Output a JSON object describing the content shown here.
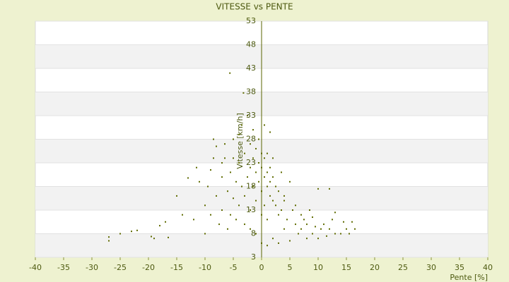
{
  "chart_data": {
    "type": "scatter",
    "title": "VITESSE vs PENTE",
    "x_label": "Pente [%]",
    "y_label": "Vitesse [km/h]",
    "xlim": [
      -40,
      40
    ],
    "xticks": [
      -40,
      -35,
      -30,
      -25,
      -20,
      -15,
      -10,
      -5,
      0,
      5,
      10,
      15,
      20,
      25,
      30,
      35,
      40
    ],
    "ylim": [
      3,
      53
    ],
    "yticks": [
      3,
      8,
      13,
      18,
      23,
      28,
      33,
      38,
      43,
      48,
      53
    ],
    "grid": true,
    "series": [
      {
        "color": "#5f6b00",
        "x": [
          -27,
          -27,
          -25,
          -23,
          -22,
          -19.5,
          -19,
          -18,
          -17,
          -16.5,
          -15,
          -14,
          -13,
          -12,
          -11.5,
          -11,
          -10,
          -10,
          -9.5,
          -9,
          -9,
          -8.5,
          -8,
          -8,
          -7.5,
          -7,
          -7,
          -6.5,
          -6.5,
          -6,
          -6,
          -5.5,
          -5.5,
          -5,
          -5,
          -5,
          -4.5,
          -4.5,
          -4,
          -4,
          -4,
          -3.5,
          -3.5,
          -3,
          -3,
          -3,
          -2.5,
          -2.5,
          -2,
          -2,
          -2,
          -2,
          -1.5,
          -1.5,
          -1.5,
          -1,
          -1,
          -1,
          -1,
          -0.5,
          -0.5,
          -0.5,
          0,
          0,
          0,
          0,
          0,
          0.5,
          0.5,
          0.5,
          0.5,
          1,
          1,
          1,
          1,
          1,
          1.5,
          1.5,
          1.5,
          2,
          2,
          2,
          2,
          2.5,
          2.5,
          3,
          3,
          3,
          3.5,
          3.5,
          4,
          4,
          4,
          4.5,
          5,
          5,
          5.5,
          6,
          6,
          6.5,
          7,
          7,
          7.5,
          8,
          8,
          8.5,
          9,
          9,
          9.5,
          10,
          10,
          10.5,
          11,
          11.5,
          12,
          12,
          12.5,
          13,
          13,
          14,
          14.5,
          15,
          15.5,
          16,
          16.5,
          -5.6,
          -3.2,
          1.5,
          -8.5,
          -7
        ],
        "values": [
          6.5,
          7.3,
          8,
          8.5,
          8.7,
          7.4,
          7,
          9.7,
          10.5,
          7.2,
          16,
          12,
          19.8,
          11,
          22,
          19,
          8,
          14,
          18,
          21.5,
          12,
          24,
          16,
          26.5,
          10,
          20,
          13,
          24,
          27,
          17,
          9,
          21,
          12,
          28,
          15.5,
          24,
          19,
          11,
          23,
          29,
          14,
          31,
          18,
          25,
          10,
          16,
          33,
          20,
          22,
          27,
          13,
          9,
          24,
          30,
          18,
          21,
          26,
          15,
          8,
          19,
          23,
          28,
          17,
          22,
          25,
          12,
          6,
          20,
          24,
          14,
          31,
          18,
          21,
          25,
          11,
          5.5,
          16,
          22,
          19,
          15,
          20,
          24,
          7,
          14,
          18,
          12,
          17,
          6,
          21,
          13,
          16,
          9,
          15,
          11,
          19,
          6.5,
          13,
          10,
          14,
          8,
          12,
          9,
          11,
          7,
          10,
          13,
          8,
          11.5,
          9.5,
          7,
          17.5,
          9,
          10,
          7.5,
          17.5,
          9,
          11,
          8,
          12.5,
          8,
          10.5,
          9,
          8,
          10.5,
          9,
          42,
          37.8,
          29.5,
          28,
          23
        ]
      }
    ]
  }
}
